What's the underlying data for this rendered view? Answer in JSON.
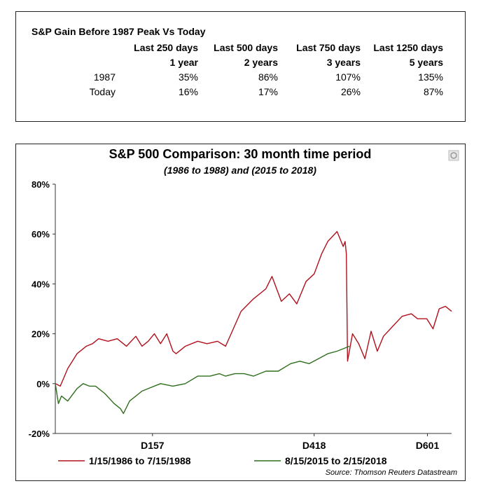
{
  "table": {
    "title": "S&P Gain Before 1987 Peak Vs  Today",
    "headers": [
      "Last 250 days",
      "Last 500 days",
      "Last 750 days",
      "Last 1250 days"
    ],
    "subheaders": [
      "1 year",
      "2 years",
      "3 years",
      "5 years"
    ],
    "rows": [
      {
        "label": "1987",
        "values": [
          "35%",
          "86%",
          "107%",
          "135%"
        ]
      },
      {
        "label": "Today",
        "values": [
          "16%",
          "17%",
          "26%",
          "87%"
        ]
      }
    ]
  },
  "chart_data": {
    "type": "line",
    "title": "S&P 500 Comparison: 30 month time period",
    "subtitle": "(1986 to 1988) and (2015 to 2018)",
    "ylim": [
      -20,
      80
    ],
    "yticks": [
      -20,
      0,
      20,
      40,
      60,
      80
    ],
    "ytick_labels": [
      "-20%",
      "0%",
      "20%",
      "40%",
      "60%",
      "80%"
    ],
    "xlim": [
      0,
      640
    ],
    "xticks": [
      157,
      418,
      601
    ],
    "xtick_labels": [
      "D157",
      "D418",
      "D601"
    ],
    "grid": false,
    "legend_position": "bottom",
    "source": "Source: Thomson Reuters Datastream",
    "series": [
      {
        "name": "1/15/1986 to 7/15/1988",
        "color": "#b0101c",
        "x": [
          0,
          8,
          20,
          35,
          50,
          60,
          70,
          85,
          100,
          115,
          130,
          140,
          150,
          160,
          170,
          180,
          190,
          195,
          210,
          230,
          245,
          262,
          275,
          300,
          320,
          340,
          350,
          365,
          378,
          390,
          405,
          418,
          430,
          440,
          455,
          465,
          468,
          470,
          472,
          480,
          490,
          500,
          510,
          520,
          530,
          545,
          560,
          575,
          585,
          600,
          610,
          620,
          630,
          640
        ],
        "values": [
          0,
          -1,
          6,
          12,
          15,
          16,
          18,
          17,
          18,
          15,
          19,
          15,
          17,
          20,
          16,
          20,
          13,
          12,
          15,
          17,
          16,
          17,
          15,
          29,
          34,
          38,
          43,
          33,
          36,
          32,
          41,
          44,
          52,
          57,
          61,
          55,
          57,
          52,
          9,
          20,
          16,
          10,
          21,
          13,
          19,
          23,
          27,
          28,
          26,
          26,
          22,
          30,
          31,
          29
        ]
      },
      {
        "name": "8/15/2015 to 2/15/2018",
        "color": "#2e6e1c",
        "x": [
          0,
          5,
          10,
          20,
          35,
          45,
          55,
          65,
          80,
          95,
          105,
          110,
          120,
          130,
          140,
          150,
          170,
          190,
          210,
          230,
          250,
          265,
          275,
          290,
          305,
          320,
          340,
          360,
          380,
          395,
          410,
          425,
          440,
          455,
          465,
          475
        ],
        "values": [
          0,
          -8,
          -5,
          -7,
          -2,
          0,
          -1,
          -1,
          -4,
          -8,
          -10,
          -12,
          -7,
          -5,
          -3,
          -2,
          0,
          -1,
          0,
          3,
          3,
          4,
          3,
          4,
          4,
          3,
          5,
          5,
          8,
          9,
          8,
          10,
          12,
          13,
          14,
          15
        ]
      }
    ]
  }
}
